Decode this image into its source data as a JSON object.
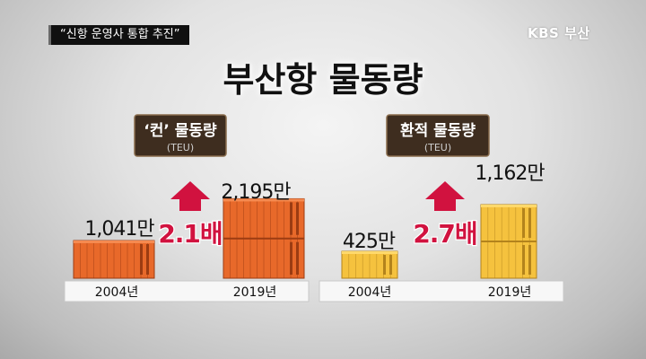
{
  "broadcast": {
    "caption": "“신항 운영사 통합 추진”",
    "logo": "KBS 부산"
  },
  "title": "부산항 물동량",
  "colors": {
    "container": "#e8692a",
    "transship": "#f5c23e",
    "arrow": "#d1123f",
    "badge": "#3e2d1f"
  },
  "chart_data": [
    {
      "type": "bar",
      "title": "‘컨’ 물동량",
      "unit_label": "(TEU)",
      "categories": [
        "2004년",
        "2019년"
      ],
      "values": [
        1041,
        2195
      ],
      "value_labels": [
        "1,041만",
        "2,195만"
      ],
      "ratio_label": "2.1배",
      "color": "#e8692a"
    },
    {
      "type": "bar",
      "title": "환적 물동량",
      "unit_label": "(TEU)",
      "categories": [
        "2004년",
        "2019년"
      ],
      "values": [
        425,
        1162
      ],
      "value_labels": [
        "425만",
        "1,162만"
      ],
      "ratio_label": "2.7배",
      "color": "#f5c23e"
    }
  ]
}
